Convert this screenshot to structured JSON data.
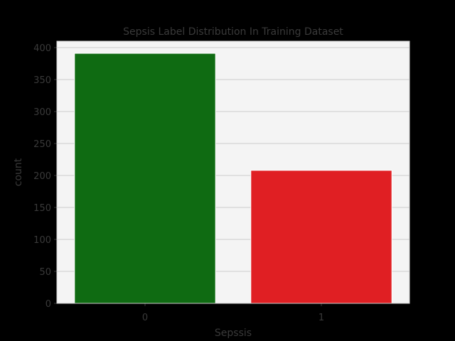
{
  "chart_data": {
    "type": "bar",
    "title": "Sepsis Label Distribution In Training Dataset",
    "xlabel": "Sepssis",
    "ylabel": "count",
    "categories": [
      "0",
      "1"
    ],
    "values": [
      391,
      208
    ],
    "ylim": [
      0,
      410
    ],
    "yticks": [
      0,
      50,
      100,
      150,
      200,
      250,
      300,
      350,
      400
    ],
    "grid": true,
    "bar_colors": [
      "#0f6b12",
      "#e01f23"
    ],
    "background": "#f4f4f4",
    "grid_color": "#cccccc"
  }
}
